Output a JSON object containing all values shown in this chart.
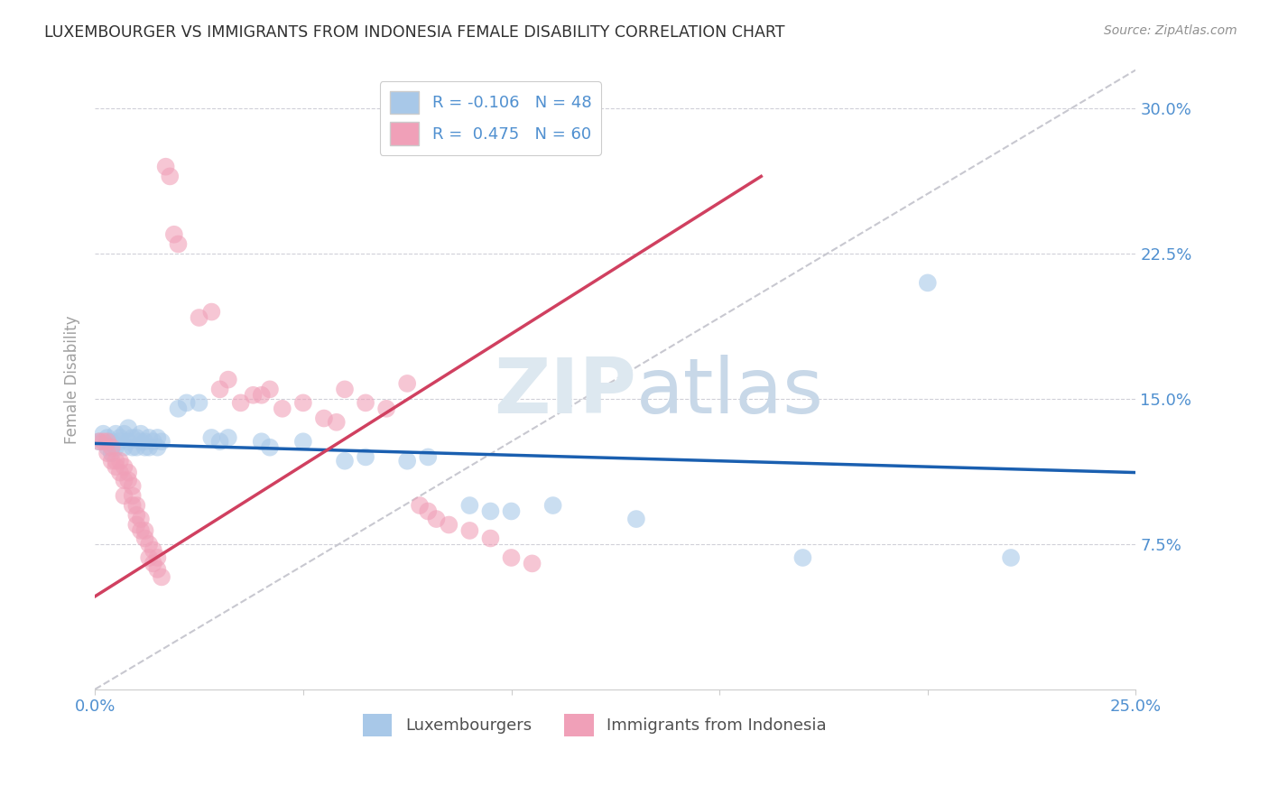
{
  "title": "LUXEMBOURGER VS IMMIGRANTS FROM INDONESIA FEMALE DISABILITY CORRELATION CHART",
  "source": "Source: ZipAtlas.com",
  "ylabel": "Female Disability",
  "xlim": [
    0.0,
    0.25
  ],
  "ylim": [
    0.0,
    0.32
  ],
  "lux_color": "#a8c8e8",
  "indo_color": "#f0a0b8",
  "lux_line_color": "#1a5fb0",
  "indo_line_color": "#d04060",
  "diagonal_color": "#c8c8d0",
  "background_color": "#ffffff",
  "grid_color": "#d0d0d8",
  "title_color": "#303030",
  "axis_label_color": "#5090d0",
  "lux_scatter": [
    [
      0.001,
      0.128
    ],
    [
      0.002,
      0.132
    ],
    [
      0.003,
      0.125
    ],
    [
      0.003,
      0.13
    ],
    [
      0.004,
      0.122
    ],
    [
      0.004,
      0.128
    ],
    [
      0.005,
      0.125
    ],
    [
      0.005,
      0.132
    ],
    [
      0.006,
      0.13
    ],
    [
      0.006,
      0.128
    ],
    [
      0.007,
      0.125
    ],
    [
      0.007,
      0.132
    ],
    [
      0.008,
      0.128
    ],
    [
      0.008,
      0.135
    ],
    [
      0.009,
      0.125
    ],
    [
      0.009,
      0.13
    ],
    [
      0.01,
      0.13
    ],
    [
      0.01,
      0.125
    ],
    [
      0.011,
      0.128
    ],
    [
      0.011,
      0.132
    ],
    [
      0.012,
      0.125
    ],
    [
      0.012,
      0.128
    ],
    [
      0.013,
      0.13
    ],
    [
      0.013,
      0.125
    ],
    [
      0.014,
      0.128
    ],
    [
      0.015,
      0.13
    ],
    [
      0.015,
      0.125
    ],
    [
      0.016,
      0.128
    ],
    [
      0.02,
      0.145
    ],
    [
      0.022,
      0.148
    ],
    [
      0.025,
      0.148
    ],
    [
      0.028,
      0.13
    ],
    [
      0.03,
      0.128
    ],
    [
      0.032,
      0.13
    ],
    [
      0.04,
      0.128
    ],
    [
      0.042,
      0.125
    ],
    [
      0.05,
      0.128
    ],
    [
      0.06,
      0.118
    ],
    [
      0.065,
      0.12
    ],
    [
      0.075,
      0.118
    ],
    [
      0.08,
      0.12
    ],
    [
      0.09,
      0.095
    ],
    [
      0.095,
      0.092
    ],
    [
      0.1,
      0.092
    ],
    [
      0.11,
      0.095
    ],
    [
      0.13,
      0.088
    ],
    [
      0.17,
      0.068
    ],
    [
      0.2,
      0.21
    ],
    [
      0.22,
      0.068
    ]
  ],
  "indo_scatter": [
    [
      0.001,
      0.128
    ],
    [
      0.002,
      0.128
    ],
    [
      0.003,
      0.122
    ],
    [
      0.003,
      0.128
    ],
    [
      0.004,
      0.118
    ],
    [
      0.004,
      0.125
    ],
    [
      0.005,
      0.118
    ],
    [
      0.005,
      0.115
    ],
    [
      0.006,
      0.112
    ],
    [
      0.006,
      0.118
    ],
    [
      0.007,
      0.108
    ],
    [
      0.007,
      0.115
    ],
    [
      0.007,
      0.1
    ],
    [
      0.008,
      0.112
    ],
    [
      0.008,
      0.108
    ],
    [
      0.009,
      0.095
    ],
    [
      0.009,
      0.1
    ],
    [
      0.009,
      0.105
    ],
    [
      0.01,
      0.095
    ],
    [
      0.01,
      0.09
    ],
    [
      0.01,
      0.085
    ],
    [
      0.011,
      0.088
    ],
    [
      0.011,
      0.082
    ],
    [
      0.012,
      0.078
    ],
    [
      0.012,
      0.082
    ],
    [
      0.013,
      0.075
    ],
    [
      0.013,
      0.068
    ],
    [
      0.014,
      0.072
    ],
    [
      0.014,
      0.065
    ],
    [
      0.015,
      0.068
    ],
    [
      0.015,
      0.062
    ],
    [
      0.016,
      0.058
    ],
    [
      0.017,
      0.27
    ],
    [
      0.018,
      0.265
    ],
    [
      0.019,
      0.235
    ],
    [
      0.02,
      0.23
    ],
    [
      0.025,
      0.192
    ],
    [
      0.028,
      0.195
    ],
    [
      0.03,
      0.155
    ],
    [
      0.032,
      0.16
    ],
    [
      0.035,
      0.148
    ],
    [
      0.038,
      0.152
    ],
    [
      0.04,
      0.152
    ],
    [
      0.042,
      0.155
    ],
    [
      0.045,
      0.145
    ],
    [
      0.05,
      0.148
    ],
    [
      0.055,
      0.14
    ],
    [
      0.058,
      0.138
    ],
    [
      0.06,
      0.155
    ],
    [
      0.065,
      0.148
    ],
    [
      0.07,
      0.145
    ],
    [
      0.075,
      0.158
    ],
    [
      0.078,
      0.095
    ],
    [
      0.08,
      0.092
    ],
    [
      0.082,
      0.088
    ],
    [
      0.085,
      0.085
    ],
    [
      0.09,
      0.082
    ],
    [
      0.095,
      0.078
    ],
    [
      0.1,
      0.068
    ],
    [
      0.105,
      0.065
    ]
  ],
  "lux_line": {
    "x0": 0.0,
    "y0": 0.127,
    "x1": 0.25,
    "y1": 0.112
  },
  "indo_line": {
    "x0": 0.0,
    "y0": 0.048,
    "x1": 0.16,
    "y1": 0.265
  },
  "diag_line": {
    "x0": 0.0,
    "y0": 0.0,
    "x1": 0.25,
    "y1": 0.32
  }
}
